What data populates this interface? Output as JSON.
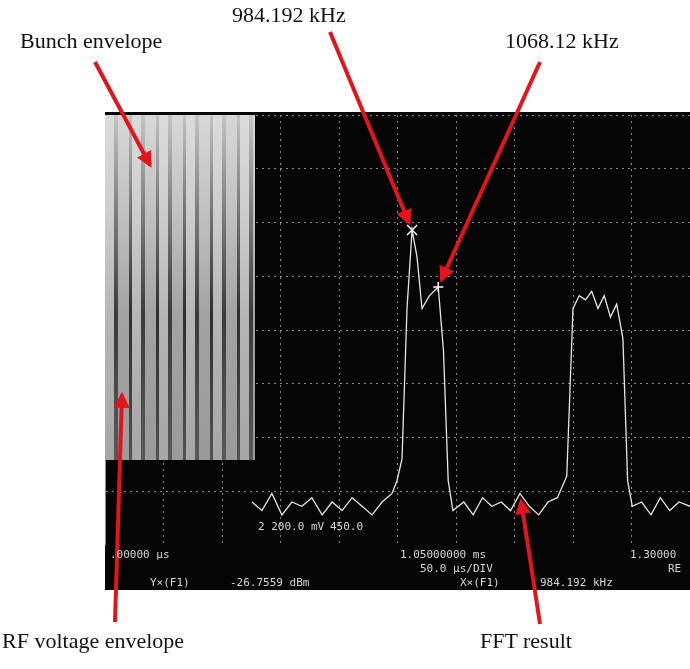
{
  "chart_data": {
    "type": "line",
    "grid": true,
    "tick_labels": false,
    "color": "#e6e6e6",
    "xlim": [
      0,
      1875
    ],
    "xticks": [
      0,
      187.5,
      375,
      562.5,
      750,
      937.5,
      1125,
      1312.5,
      1500,
      1687.5,
      1875
    ],
    "ylim": [
      -100,
      0
    ],
    "yticks": [
      -100,
      -87.5,
      -75,
      -62.5,
      -50,
      -37.5,
      -25,
      -12.5,
      0
    ],
    "x": [
      471,
      503,
      535,
      567,
      599,
      631,
      663,
      696,
      728,
      760,
      792,
      824,
      856,
      888,
      920,
      936,
      952,
      968,
      984.192,
      1000,
      1016,
      1040,
      1068.12,
      1085,
      1100,
      1115,
      1150,
      1180,
      1210,
      1240,
      1270,
      1300,
      1330,
      1360,
      1390,
      1420,
      1450,
      1480,
      1500,
      1520,
      1540,
      1560,
      1580,
      1600,
      1620,
      1640,
      1660,
      1675,
      1690,
      1720,
      1750,
      1780,
      1810,
      1840,
      1875
    ],
    "values": [
      -90,
      -92,
      -88,
      -93,
      -90,
      -91,
      -89,
      -93,
      -90,
      -92,
      -89,
      -91,
      -93,
      -90,
      -88,
      -85,
      -80,
      -45,
      -26.7559,
      -33,
      -45,
      -42,
      -40,
      -55,
      -85,
      -92,
      -90,
      -93,
      -89,
      -91,
      -90,
      -92,
      -88,
      -91,
      -93,
      -90,
      -89,
      -84,
      -45,
      -42,
      -43,
      -41,
      -45,
      -42,
      -47,
      -44,
      -52,
      -85,
      -91,
      -90,
      -93,
      -89,
      -92,
      -90,
      -91
    ],
    "annotations": [
      {
        "text": "Bunch envelope"
      },
      {
        "text": "984.192 kHz",
        "x": 984.192,
        "y": -26.7559,
        "marker": "x"
      },
      {
        "text": "1068.12 kHz",
        "x": 1068.12,
        "y": -40,
        "marker": "cross"
      },
      {
        "text": "RF voltage envelope"
      },
      {
        "text": "FFT result",
        "x": 1330,
        "y": -88
      }
    ],
    "readout": [
      ".00000 µs",
      "1.05000000 ms",
      "1.30000",
      "50.0 µs/DIV",
      "RE",
      "Y×(F1)",
      "-26.7559 dBm",
      "X×(F1)",
      "984.192 kHz",
      "2 200.0 mV",
      "450.0"
    ]
  }
}
